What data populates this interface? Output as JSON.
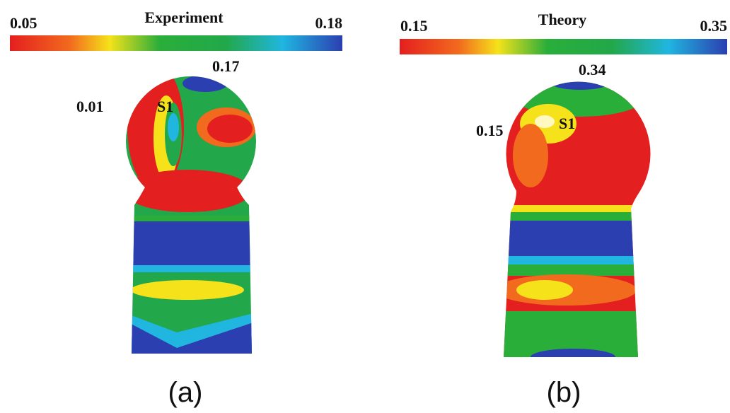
{
  "panels": [
    {
      "colorbar": {
        "min_label": "0.05",
        "title": "Experiment",
        "max_label": "0.18"
      },
      "annotations": {
        "top": "0.17",
        "left": "0.01",
        "point": "S1"
      },
      "caption": "(a)"
    },
    {
      "colorbar": {
        "min_label": "0.15",
        "title": "Theory",
        "max_label": "0.35"
      },
      "annotations": {
        "top": "0.34",
        "left": "0.15",
        "point": "S1"
      },
      "caption": "(b)"
    }
  ]
}
